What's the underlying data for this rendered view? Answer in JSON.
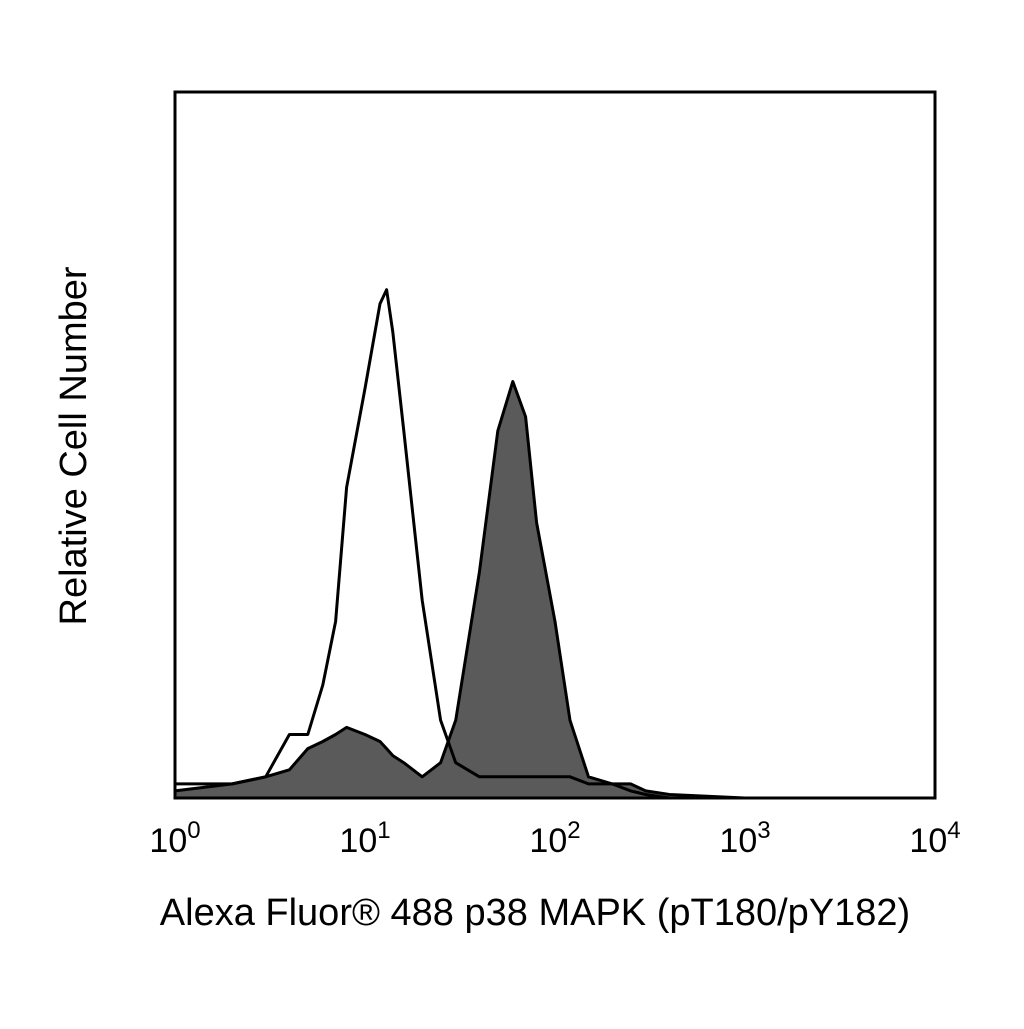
{
  "chart_data": {
    "type": "histogram",
    "x_label": "Alexa Fluor® 488 p38 MAPK (pT180/pY182)",
    "y_label": "Relative Cell Number",
    "log_x": true,
    "xlim": [
      1,
      10000
    ],
    "ylim": [
      0,
      100
    ],
    "xticks": [
      {
        "value": 1,
        "label": "10",
        "exponent": "0"
      },
      {
        "value": 10,
        "label": "10",
        "exponent": "1"
      },
      {
        "value": 100,
        "label": "10",
        "exponent": "2"
      },
      {
        "value": 1000,
        "label": "10",
        "exponent": "3"
      },
      {
        "value": 10000,
        "label": "10",
        "exponent": "4"
      }
    ],
    "x": [
      1,
      2,
      3,
      4,
      5,
      6,
      7,
      8,
      10,
      12,
      13,
      14,
      16,
      20,
      25,
      30,
      40,
      50,
      60,
      70,
      80,
      100,
      120,
      150,
      200,
      250,
      300,
      400,
      1000,
      10000
    ],
    "series": [
      {
        "color": "#000000",
        "fill_color": "#5a5a5a",
        "values": [
          1,
          2,
          3,
          4,
          7,
          8,
          9,
          10,
          9,
          8,
          7,
          6,
          5,
          3,
          5,
          11,
          32,
          52,
          59,
          54,
          39,
          25,
          11,
          3,
          2,
          2,
          1,
          0.5,
          0,
          0
        ]
      },
      {
        "color": "#000000",
        "values": [
          2,
          2,
          3,
          9,
          9,
          16,
          25,
          44,
          58,
          70,
          72,
          66,
          52,
          28,
          11,
          5,
          3,
          3,
          3,
          3,
          3,
          3,
          3,
          2,
          2,
          1,
          0.5,
          0,
          0,
          0
        ]
      }
    ]
  }
}
